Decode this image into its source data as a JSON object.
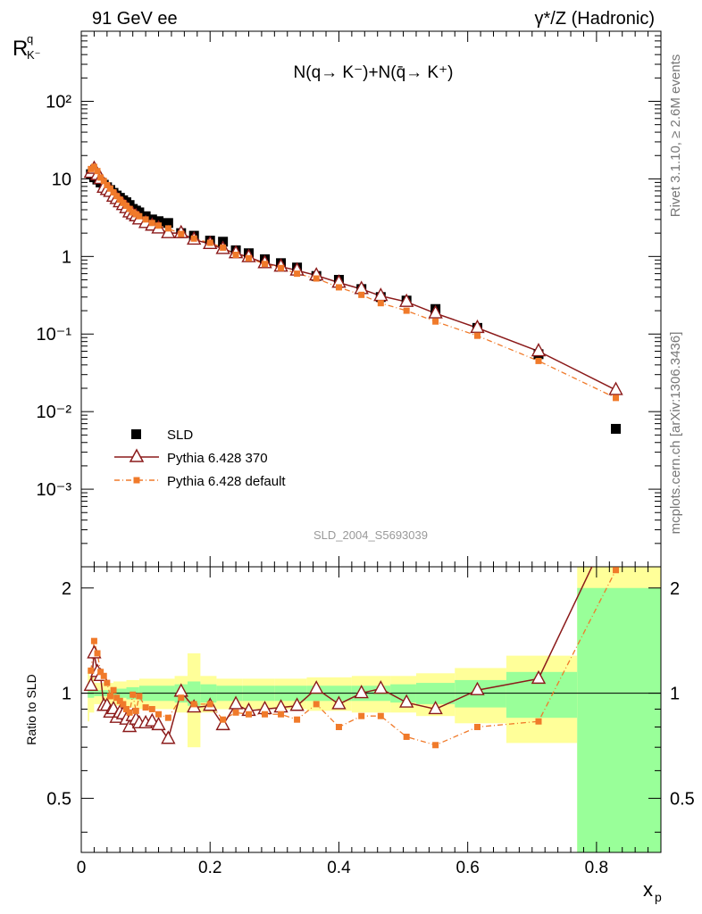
{
  "header": {
    "left_title": "91 GeV ee",
    "right_title": "γ*/Z (Hadronic)",
    "side_label_rivet": "Rivet 3.1.10, ≥ 2.6M events",
    "side_label_source": "mcplots.cern.ch [arXiv:1306.3436]",
    "analysis_id": "SLD_2004_S5693039"
  },
  "chart_data": {
    "type": "scatter",
    "title": "N(q→ K⁻)+N(q̄→ K⁺)",
    "ylabel": "R_K⁻^q",
    "ylabel_main": "R",
    "ylabel_sup": "q",
    "ylabel_sub": "K⁻",
    "ratio_ylabel": "Ratio to SLD",
    "xlabel": "x_p",
    "xlabel_main": "x",
    "xlabel_sub": "p",
    "xlim": [
      0,
      0.9
    ],
    "ylim": [
      0.0001,
      800
    ],
    "ylim_ratio": [
      0.35,
      2.3
    ],
    "x_ticks": [
      "0",
      "0.2",
      "0.4",
      "0.6",
      "0.8"
    ],
    "y_ticks": [
      {
        "value": 0.001,
        "label": "10⁻³"
      },
      {
        "value": 0.01,
        "label": "10⁻²"
      },
      {
        "value": 0.1,
        "label": "10⁻¹"
      },
      {
        "value": 1,
        "label": "1"
      },
      {
        "value": 10,
        "label": "10"
      },
      {
        "value": 100,
        "label": "10²"
      }
    ],
    "ratio_ticks": [
      "0.5",
      "1",
      "2"
    ],
    "legend": {
      "position": "lower-left",
      "entries": [
        "SLD",
        "Pythia 6.428 370",
        "Pythia 6.428 default"
      ]
    },
    "colors": {
      "data": "#000000",
      "p370": "#8b1a1a",
      "pdefault": "#f07a2a",
      "band_stat": "#99ff99",
      "band_total": "#ffff99"
    },
    "x": [
      0.015,
      0.02,
      0.025,
      0.03,
      0.035,
      0.04,
      0.045,
      0.05,
      0.055,
      0.06,
      0.065,
      0.07,
      0.075,
      0.08,
      0.085,
      0.09,
      0.1,
      0.11,
      0.12,
      0.135,
      0.155,
      0.175,
      0.2,
      0.22,
      0.24,
      0.26,
      0.285,
      0.31,
      0.335,
      0.365,
      0.4,
      0.435,
      0.465,
      0.505,
      0.55,
      0.615,
      0.71,
      0.83
    ],
    "series": [
      {
        "name": "SLD",
        "marker": "square",
        "values": [
          11.5,
          10.5,
          9.8,
          9.0,
          8.4,
          7.8,
          7.2,
          6.6,
          6.1,
          5.7,
          5.3,
          5.0,
          4.6,
          4.1,
          3.9,
          3.7,
          3.3,
          3.0,
          2.85,
          2.7,
          2.0,
          1.85,
          1.6,
          1.55,
          1.2,
          1.1,
          0.92,
          0.82,
          0.72,
          0.56,
          0.5,
          0.38,
          0.3,
          0.27,
          0.21,
          0.12,
          0.055,
          0.006
        ]
      },
      {
        "name": "Pythia 6.428 370",
        "marker": "triangle-open",
        "values": [
          12.0,
          13.5,
          11.2,
          10.0,
          7.7,
          7.2,
          6.8,
          5.9,
          5.5,
          5.0,
          4.6,
          4.2,
          3.7,
          3.5,
          3.3,
          3.0,
          2.7,
          2.5,
          2.3,
          2.0,
          2.0,
          1.65,
          1.45,
          1.25,
          1.1,
          0.98,
          0.82,
          0.74,
          0.66,
          0.57,
          0.46,
          0.38,
          0.31,
          0.26,
          0.185,
          0.12,
          0.06,
          0.019
        ]
      },
      {
        "name": "Pythia 6.428 default",
        "marker": "square-small",
        "values": [
          13.4,
          14.3,
          12.6,
          10.4,
          9.4,
          8.3,
          7.5,
          6.7,
          6.0,
          5.4,
          4.9,
          4.5,
          4.1,
          3.7,
          3.5,
          3.3,
          3.0,
          2.7,
          2.5,
          2.3,
          1.95,
          1.7,
          1.5,
          1.3,
          1.05,
          0.95,
          0.8,
          0.71,
          0.6,
          0.52,
          0.4,
          0.32,
          0.25,
          0.2,
          0.145,
          0.095,
          0.045,
          0.015
        ]
      }
    ],
    "ratio_series": [
      {
        "name": "Pythia 6.428 370",
        "values": [
          1.05,
          1.3,
          1.15,
          1.12,
          0.92,
          0.92,
          0.88,
          0.9,
          0.85,
          0.88,
          0.87,
          0.84,
          0.8,
          0.86,
          0.84,
          0.82,
          0.82,
          0.83,
          0.81,
          0.74,
          1.01,
          0.91,
          0.92,
          0.81,
          0.93,
          0.89,
          0.9,
          0.91,
          0.92,
          1.03,
          0.93,
          1.0,
          1.03,
          0.94,
          0.9,
          1.02,
          1.1,
          3.2
        ]
      },
      {
        "name": "Pythia 6.428 default",
        "values": [
          1.16,
          1.41,
          1.3,
          1.15,
          1.12,
          1.07,
          0.98,
          1.02,
          0.97,
          0.95,
          0.93,
          0.9,
          0.88,
          0.99,
          0.89,
          0.98,
          0.91,
          0.9,
          0.87,
          0.85,
          0.97,
          0.93,
          0.93,
          0.84,
          0.88,
          0.87,
          0.87,
          0.87,
          0.84,
          0.93,
          0.8,
          0.86,
          0.86,
          0.75,
          0.71,
          0.8,
          0.83,
          2.25
        ]
      }
    ],
    "ratio_bands": [
      {
        "x0": 0.01,
        "x1": 0.0125,
        "stat": 0.03,
        "total": 0.17
      },
      {
        "x0": 0.0125,
        "x1": 0.02,
        "stat": 0.03,
        "total": 0.12
      },
      {
        "x0": 0.02,
        "x1": 0.05,
        "stat": 0.02,
        "total": 0.07
      },
      {
        "x0": 0.05,
        "x1": 0.07,
        "stat": 0.03,
        "total": 0.08
      },
      {
        "x0": 0.07,
        "x1": 0.09,
        "stat": 0.04,
        "total": 0.09
      },
      {
        "x0": 0.09,
        "x1": 0.145,
        "stat": 0.05,
        "total": 0.1
      },
      {
        "x0": 0.145,
        "x1": 0.165,
        "stat": 0.06,
        "total": 0.12
      },
      {
        "x0": 0.165,
        "x1": 0.185,
        "stat": 0.08,
        "total": 0.3
      },
      {
        "x0": 0.185,
        "x1": 0.21,
        "stat": 0.06,
        "total": 0.12
      },
      {
        "x0": 0.21,
        "x1": 0.25,
        "stat": 0.05,
        "total": 0.1
      },
      {
        "x0": 0.25,
        "x1": 0.3,
        "stat": 0.05,
        "total": 0.1
      },
      {
        "x0": 0.3,
        "x1": 0.35,
        "stat": 0.05,
        "total": 0.1
      },
      {
        "x0": 0.35,
        "x1": 0.42,
        "stat": 0.05,
        "total": 0.11
      },
      {
        "x0": 0.42,
        "x1": 0.48,
        "stat": 0.05,
        "total": 0.12
      },
      {
        "x0": 0.48,
        "x1": 0.52,
        "stat": 0.06,
        "total": 0.12
      },
      {
        "x0": 0.52,
        "x1": 0.58,
        "stat": 0.07,
        "total": 0.14
      },
      {
        "x0": 0.58,
        "x1": 0.66,
        "stat": 0.09,
        "total": 0.18
      },
      {
        "x0": 0.66,
        "x1": 0.77,
        "stat": 0.15,
        "total": 0.28
      },
      {
        "x0": 0.77,
        "x1": 0.9,
        "stat": 1.0,
        "total": 2.0
      }
    ]
  }
}
